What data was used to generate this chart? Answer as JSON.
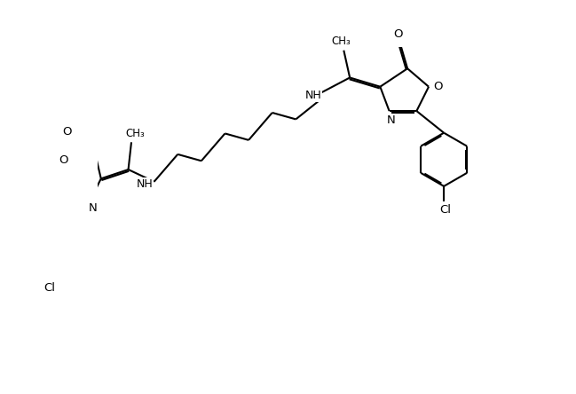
{
  "bg_color": "#ffffff",
  "line_color": "#000000",
  "lw": 1.5,
  "dbo": 0.06,
  "figsize": [
    6.49,
    4.44
  ],
  "dpi": 100,
  "xlim": [
    0,
    13.0
  ],
  "ylim": [
    -0.5,
    9.5
  ]
}
